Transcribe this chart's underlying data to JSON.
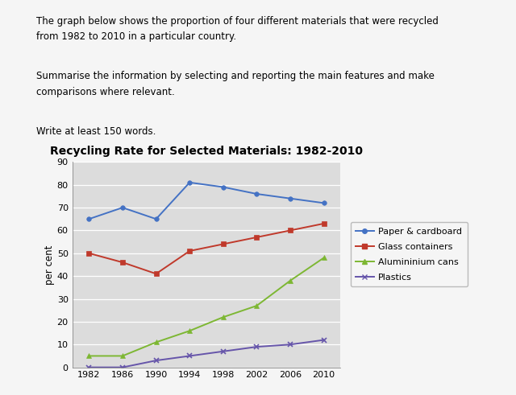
{
  "title": "Recycling Rate for Selected Materials: 1982-2010",
  "ylabel": "per cent",
  "years": [
    1982,
    1986,
    1990,
    1994,
    1998,
    2002,
    2006,
    2010
  ],
  "paper_cardboard": [
    65,
    70,
    65,
    81,
    79,
    76,
    74,
    72
  ],
  "glass_containers": [
    50,
    46,
    41,
    51,
    54,
    57,
    60,
    63
  ],
  "aluminium_cans": [
    5,
    5,
    11,
    16,
    22,
    27,
    38,
    48
  ],
  "plastics": [
    0,
    0,
    3,
    5,
    7,
    9,
    10,
    12
  ],
  "paper_color": "#4472C4",
  "glass_color": "#C0392B",
  "aluminium_color": "#7DB733",
  "plastics_color": "#6655AA",
  "ylim": [
    0,
    90
  ],
  "yticks": [
    0,
    10,
    20,
    30,
    40,
    50,
    60,
    70,
    80,
    90
  ],
  "chart_bg": "#DCDCDC",
  "fig_bg": "#F5F5F5",
  "grid_color": "white",
  "title_fontsize": 10,
  "label_fontsize": 8.5,
  "tick_fontsize": 8,
  "legend_fontsize": 8,
  "header_text1": "The graph below shows the proportion of four different materials that were recycled",
  "header_text2": "from 1982 to 2010 in a particular country.",
  "subheader_text1": "Summarise the information by selecting and reporting the main features and make",
  "subheader_text2": "comparisons where relevant.",
  "footer_text": "Write at least 150 words."
}
